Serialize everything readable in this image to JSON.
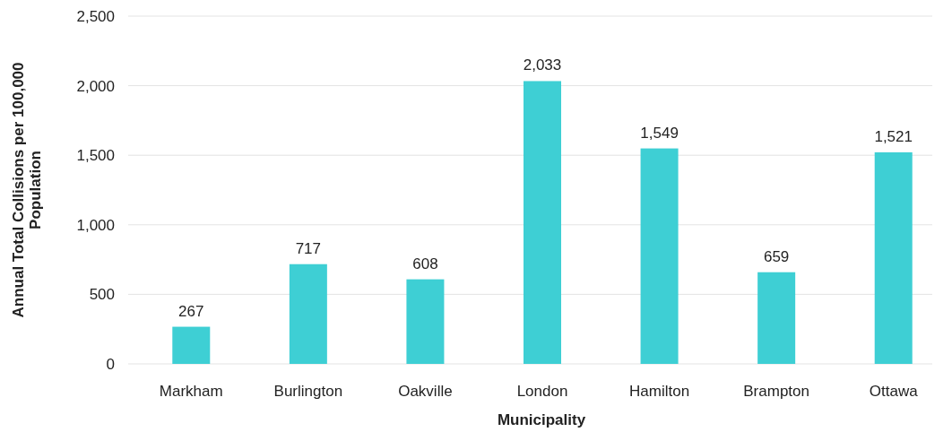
{
  "chart_data": {
    "type": "bar",
    "xlabel": "Municipality",
    "ylabel": "Annual Total Collisions per 100,000 Population",
    "categories": [
      "Markham",
      "Burlington",
      "Oakville",
      "London",
      "Hamilton",
      "Brampton",
      "Ottawa"
    ],
    "values": [
      267,
      717,
      608,
      2033,
      1549,
      659,
      1521
    ],
    "color": "#3ecfd4",
    "ylim": [
      0,
      2500
    ],
    "yticks": [
      0,
      {
        "value": 500,
        "label": "500"
      },
      {
        "value": 1000,
        "label": "1,000"
      },
      {
        "value": 1500,
        "label": "1,500"
      },
      {
        "value": 2000,
        "label": "2,000"
      },
      {
        "value": 2500,
        "label": "2,500"
      }
    ],
    "grid": "y",
    "value_labels": [
      "267",
      "717",
      "608",
      "2,033",
      "1,549",
      "659",
      "1,521"
    ]
  }
}
